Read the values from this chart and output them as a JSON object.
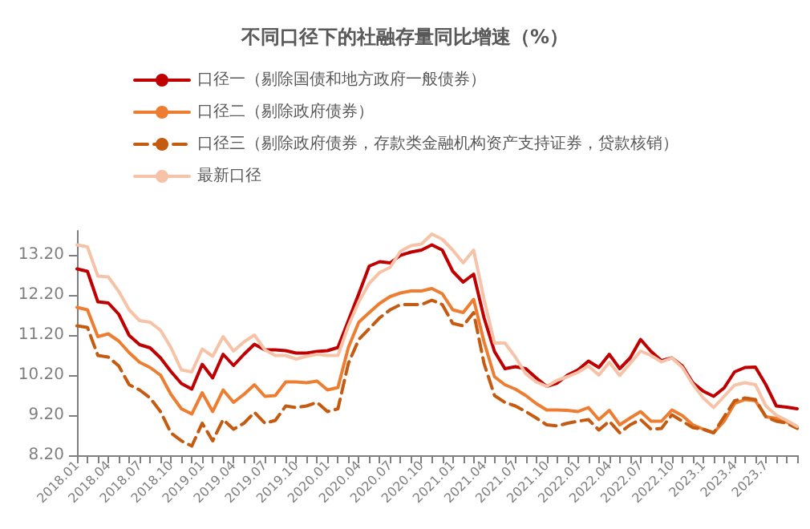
{
  "chart_data": {
    "type": "line",
    "title": "不同口径下的社融存量同比增速（%）",
    "categories": [
      "2018.01",
      null,
      null,
      "2018.04",
      null,
      null,
      "2018.07",
      null,
      null,
      "2018.10",
      null,
      null,
      "2019.01",
      null,
      null,
      "2019.04",
      null,
      null,
      "2019.07",
      null,
      null,
      "2019.10",
      null,
      null,
      "2020.01",
      null,
      null,
      "2020.04",
      null,
      null,
      "2020.07",
      null,
      null,
      "2020.10",
      null,
      null,
      "2021.01",
      null,
      null,
      "2021.04",
      null,
      null,
      "2021.07",
      null,
      null,
      "2021.10",
      null,
      null,
      "2022.01",
      null,
      null,
      "2022.04",
      null,
      null,
      "2022.07",
      null,
      null,
      "2022.10",
      null,
      null,
      "2023.1",
      null,
      null,
      "2023.4",
      null,
      null,
      "2023.7",
      null,
      null,
      null
    ],
    "series": [
      {
        "name": "口径一（剔除国债和地方政府一般债券）",
        "color": "#c00000",
        "line_style": "solid",
        "values": [
          12.85,
          12.79,
          12.03,
          12.0,
          11.72,
          11.19,
          10.96,
          10.88,
          10.63,
          10.29,
          9.99,
          9.85,
          10.47,
          10.13,
          10.72,
          10.44,
          10.72,
          10.97,
          10.83,
          10.83,
          10.81,
          10.75,
          10.75,
          10.79,
          10.81,
          10.89,
          11.56,
          12.23,
          12.92,
          13.03,
          13.0,
          13.19,
          13.27,
          13.32,
          13.45,
          13.32,
          12.79,
          12.52,
          12.72,
          11.63,
          10.79,
          10.36,
          10.41,
          10.36,
          10.13,
          9.92,
          10.0,
          10.2,
          10.33,
          10.55,
          10.39,
          10.72,
          10.36,
          10.63,
          11.09,
          10.79,
          10.56,
          10.63,
          10.43,
          10.01,
          9.8,
          9.67,
          9.88,
          10.28,
          10.39,
          10.4,
          9.96,
          9.43,
          9.4,
          9.36
        ]
      },
      {
        "name": "口径二（剔除政府债券）",
        "color": "#ed7d31",
        "line_style": "solid",
        "values": [
          11.89,
          11.83,
          11.16,
          11.23,
          11.05,
          10.76,
          10.52,
          10.39,
          10.2,
          9.72,
          9.36,
          9.23,
          9.76,
          9.29,
          9.83,
          9.52,
          9.72,
          9.96,
          9.67,
          9.69,
          10.03,
          10.03,
          10.01,
          10.05,
          9.83,
          9.89,
          10.89,
          11.52,
          11.76,
          11.99,
          12.16,
          12.25,
          12.3,
          12.3,
          12.36,
          12.23,
          11.83,
          11.76,
          12.09,
          11.03,
          10.16,
          9.96,
          9.85,
          9.69,
          9.49,
          9.33,
          9.33,
          9.32,
          9.29,
          9.39,
          9.09,
          9.32,
          8.96,
          9.13,
          9.29,
          9.05,
          9.05,
          9.33,
          9.19,
          8.96,
          8.85,
          8.76,
          9.05,
          9.49,
          9.59,
          9.56,
          9.16,
          9.12,
          9.03,
          8.89
        ]
      },
      {
        "name": "口径三（剔除政府债券，存款类金融机构资产支持证券，贷款核销）",
        "color": "#c55a11",
        "line_style": "dashed",
        "values": [
          11.43,
          11.39,
          10.69,
          10.65,
          10.43,
          9.96,
          9.83,
          9.63,
          9.29,
          8.76,
          8.56,
          8.43,
          9.0,
          8.56,
          9.09,
          8.85,
          9.0,
          9.27,
          9.0,
          9.07,
          9.43,
          9.39,
          9.43,
          9.52,
          9.29,
          9.36,
          10.49,
          11.09,
          11.36,
          11.63,
          11.83,
          11.96,
          11.96,
          11.96,
          12.07,
          11.96,
          11.49,
          11.43,
          11.76,
          10.49,
          9.69,
          9.52,
          9.43,
          9.29,
          9.13,
          8.96,
          8.93,
          9.0,
          9.05,
          9.09,
          8.83,
          9.05,
          8.76,
          8.96,
          9.09,
          8.85,
          8.87,
          9.21,
          9.05,
          8.89,
          8.85,
          8.76,
          9.16,
          9.56,
          9.63,
          9.59,
          9.16,
          9.05,
          9.0,
          8.87
        ]
      },
      {
        "name": "最新口径",
        "color": "#f6c3a8",
        "line_style": "solid",
        "values": [
          13.45,
          13.4,
          12.67,
          12.65,
          12.29,
          11.83,
          11.56,
          11.52,
          11.32,
          10.89,
          10.33,
          10.28,
          10.85,
          10.67,
          11.16,
          10.8,
          11.03,
          11.2,
          10.83,
          10.69,
          10.69,
          10.6,
          10.67,
          10.72,
          10.69,
          10.69,
          11.43,
          12.03,
          12.49,
          12.76,
          12.89,
          13.29,
          13.43,
          13.47,
          13.72,
          13.59,
          13.32,
          13.0,
          13.32,
          12.09,
          11.0,
          11.0,
          10.65,
          10.23,
          10.03,
          9.92,
          10.07,
          10.16,
          10.27,
          10.43,
          10.2,
          10.52,
          10.19,
          10.49,
          10.8,
          10.69,
          10.53,
          10.63,
          10.39,
          9.97,
          9.63,
          9.39,
          9.67,
          9.95,
          10.01,
          9.96,
          9.43,
          9.2,
          9.07,
          8.92
        ]
      }
    ],
    "ylim": [
      8.2,
      13.8
    ],
    "yticks": [
      {
        "value": 8.2,
        "label": "8.20"
      },
      {
        "value": 9.2,
        "label": "9.20"
      },
      {
        "value": 10.2,
        "label": "10.20"
      },
      {
        "value": 11.2,
        "label": "11.20"
      },
      {
        "value": 12.2,
        "label": "12.20"
      },
      {
        "value": 13.2,
        "label": "13.20"
      }
    ],
    "grid": false,
    "legend": "top",
    "marker": "none"
  }
}
